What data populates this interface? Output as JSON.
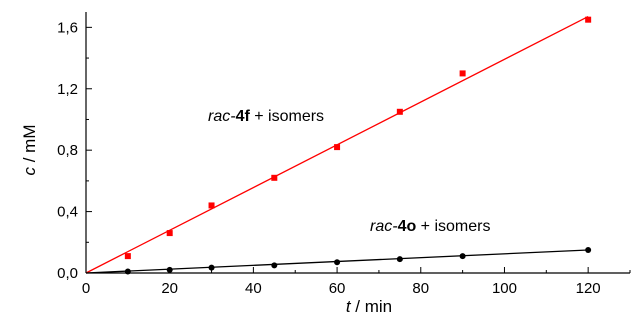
{
  "chart_data": {
    "type": "scatter",
    "xlabel_var": "t",
    "xlabel_unit": " / min",
    "ylabel_var": "c",
    "ylabel_unit": " / mM",
    "xlim": [
      0,
      130
    ],
    "ylim": [
      0,
      1.7
    ],
    "x_ticks": [
      0,
      20,
      40,
      60,
      80,
      100,
      120
    ],
    "x_tick_labels": [
      "0",
      "20",
      "40",
      "60",
      "80",
      "100",
      "120"
    ],
    "y_ticks": [
      0,
      0.4,
      0.8,
      1.2,
      1.6
    ],
    "y_tick_labels": [
      "0,0",
      "0,4",
      "0,8",
      "1,2",
      "1,6"
    ],
    "grid": false,
    "legend": "none",
    "series": [
      {
        "label_prefix": "rac-",
        "label_bold": "4f",
        "label_suffix": " + isomers",
        "color": "#ff0000",
        "marker": "square",
        "x": [
          10,
          20,
          30,
          45,
          60,
          75,
          90,
          120
        ],
        "y": [
          0.11,
          0.26,
          0.44,
          0.62,
          0.82,
          1.05,
          1.3,
          1.65
        ],
        "fit": {
          "x": [
            0,
            120
          ],
          "y": [
            0,
            1.67
          ]
        }
      },
      {
        "label_prefix": "rac-",
        "label_bold": "4o",
        "label_suffix": " + isomers",
        "color": "#000000",
        "marker": "circle",
        "x": [
          10,
          20,
          30,
          45,
          60,
          75,
          90,
          120
        ],
        "y": [
          0.01,
          0.02,
          0.035,
          0.05,
          0.07,
          0.09,
          0.11,
          0.15
        ],
        "fit": {
          "x": [
            0,
            120
          ],
          "y": [
            0,
            0.15
          ]
        }
      }
    ]
  }
}
